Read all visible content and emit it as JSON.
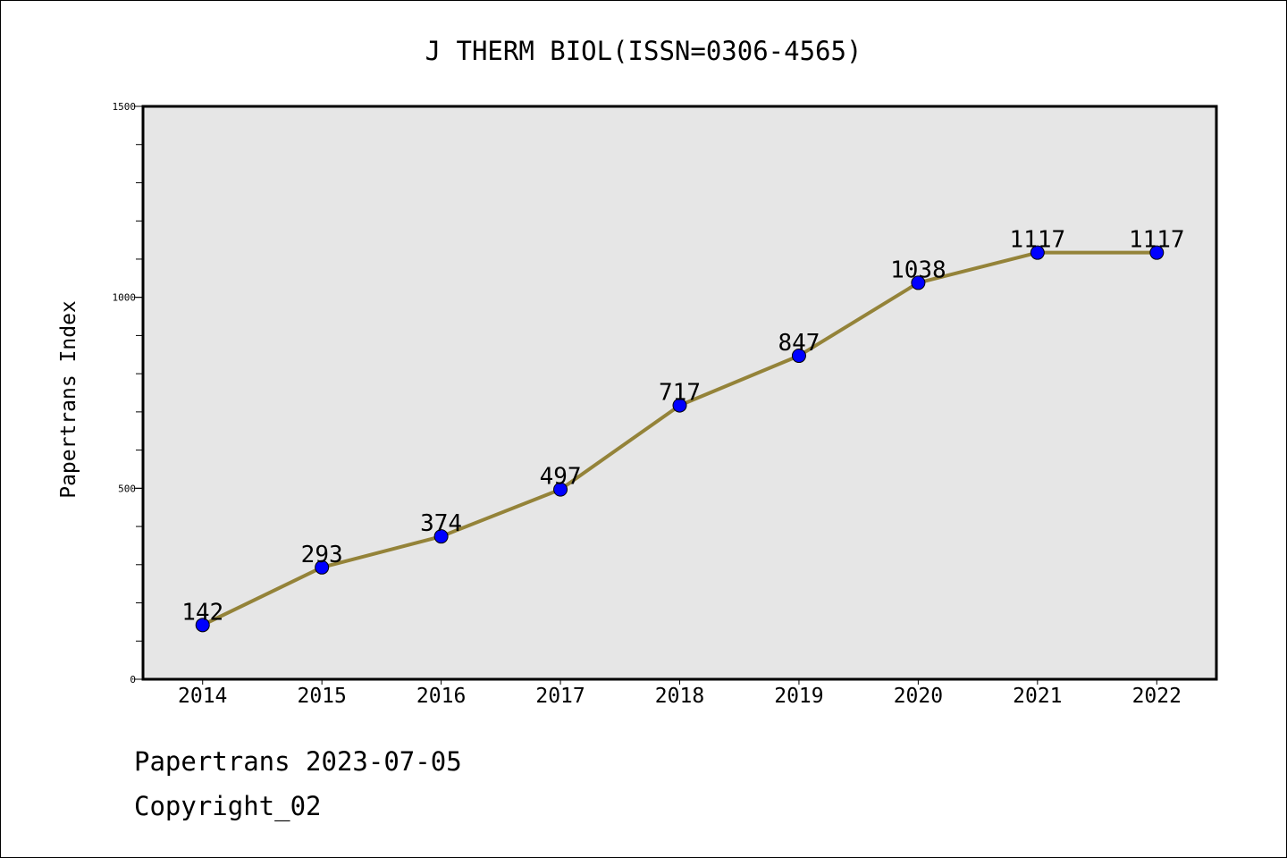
{
  "chart_data": {
    "type": "line",
    "title": "J THERM BIOL(ISSN=0306-4565)",
    "xlabel": "",
    "ylabel": "Papertrans Index",
    "categories": [
      "2014",
      "2015",
      "2016",
      "2017",
      "2018",
      "2019",
      "2020",
      "2021",
      "2022"
    ],
    "series": [
      {
        "values": [
          142,
          293,
          374,
          497,
          717,
          847,
          1038,
          1117,
          1117
        ],
        "line_color": "#948339",
        "marker_color": "#0000ff"
      }
    ],
    "ylim": [
      0,
      1500
    ],
    "yticks": [
      0,
      500,
      1000,
      1500
    ],
    "y_minor_step": 100,
    "grid": false,
    "legend": "none",
    "plot_background": "#e6e6e6",
    "data_labels": true
  },
  "footer": {
    "line1": "Papertrans 2023-07-05",
    "line2": "Copyright_02"
  }
}
